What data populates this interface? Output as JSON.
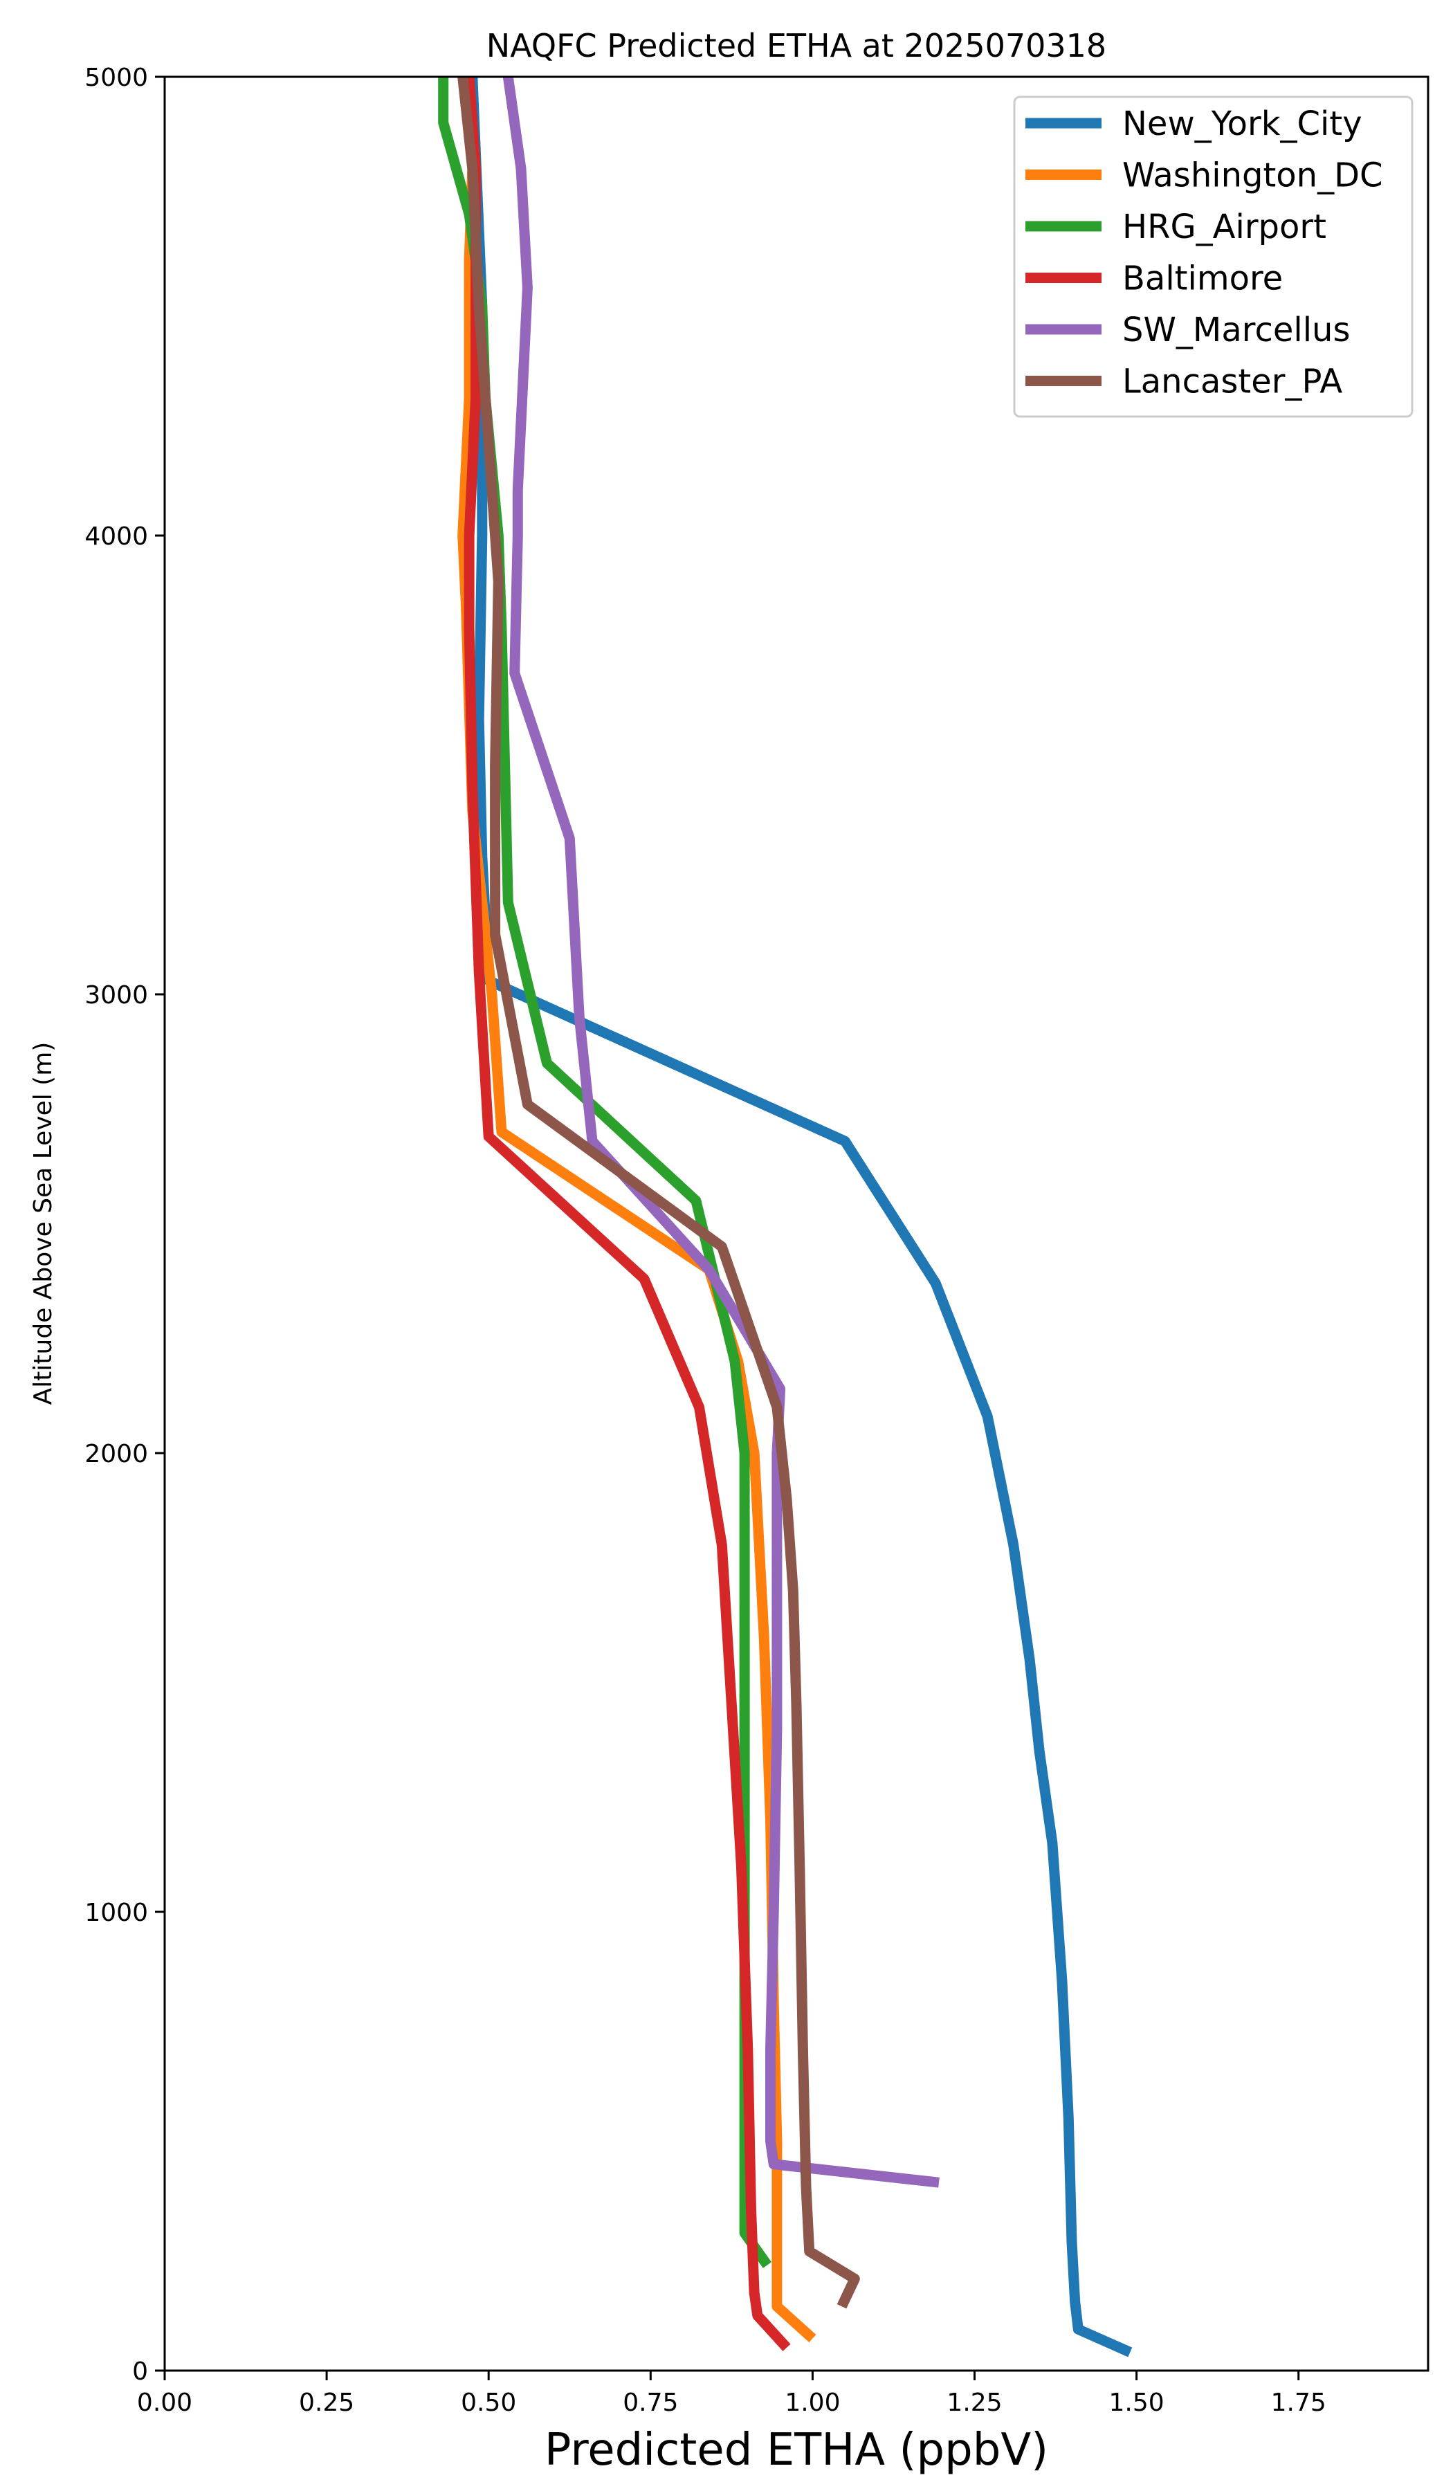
{
  "chart_data": {
    "type": "line",
    "title": "NAQFC Predicted ETHA at 2025070318",
    "xlabel": "Predicted ETHA (ppbV)",
    "ylabel": "Altitude Above Sea Level (m)",
    "xlim": [
      0,
      1.95
    ],
    "ylim": [
      0,
      5000
    ],
    "xticks": [
      "0.00",
      "0.25",
      "0.50",
      "0.75",
      "1.00",
      "1.25",
      "1.50",
      "1.75"
    ],
    "yticks": [
      "0",
      "1000",
      "2000",
      "3000",
      "4000",
      "5000"
    ],
    "grid": false,
    "legend_position": "top-right",
    "series": [
      {
        "name": "New_York_City",
        "color": "#1f77b4",
        "x": [
          1.49,
          1.41,
          1.405,
          1.4,
          1.395,
          1.385,
          1.37,
          1.35,
          1.335,
          1.31,
          1.27,
          1.19,
          1.05,
          0.5,
          0.49,
          0.485,
          0.49,
          0.49,
          0.475
        ],
        "y": [
          40,
          90,
          150,
          280,
          550,
          850,
          1150,
          1350,
          1550,
          1800,
          2080,
          2370,
          2680,
          3030,
          3300,
          3600,
          4000,
          4500,
          5000
        ]
      },
      {
        "name": "Washington_DC",
        "color": "#ff7f0e",
        "x": [
          1.0,
          0.945,
          0.945,
          0.945,
          0.94,
          0.935,
          0.925,
          0.91,
          0.885,
          0.84,
          0.52,
          0.505,
          0.475,
          0.465,
          0.46,
          0.47,
          0.47,
          0.475,
          0.46
        ],
        "y": [
          70,
          140,
          300,
          500,
          800,
          1200,
          1600,
          2000,
          2200,
          2400,
          2700,
          3000,
          3400,
          3850,
          4000,
          4300,
          4600,
          4800,
          5000
        ]
      },
      {
        "name": "HRG_Airport",
        "color": "#2ca02c",
        "x": [
          0.93,
          0.895,
          0.895,
          0.895,
          0.895,
          0.895,
          0.895,
          0.895,
          0.88,
          0.82,
          0.59,
          0.53,
          0.525,
          0.52,
          0.515,
          0.495,
          0.49,
          0.47,
          0.43,
          0.43
        ],
        "y": [
          230,
          300,
          500,
          800,
          1100,
          1400,
          1700,
          2000,
          2200,
          2550,
          2850,
          3200,
          3500,
          3800,
          4000,
          4300,
          4500,
          4700,
          4900,
          5000
        ]
      },
      {
        "name": "Baltimore",
        "color": "#d62728",
        "x": [
          0.96,
          0.915,
          0.91,
          0.905,
          0.9,
          0.89,
          0.875,
          0.86,
          0.825,
          0.74,
          0.5,
          0.485,
          0.475,
          0.47,
          0.47,
          0.48,
          0.48,
          0.48,
          0.47
        ],
        "y": [
          50,
          120,
          170,
          350,
          700,
          1100,
          1450,
          1800,
          2100,
          2380,
          2690,
          3050,
          3450,
          3800,
          4000,
          4300,
          4600,
          4800,
          5000
        ]
      },
      {
        "name": "SW_Marcellus",
        "color": "#9467bd",
        "x": [
          1.195,
          0.94,
          0.935,
          0.935,
          0.94,
          0.945,
          0.945,
          0.945,
          0.95,
          0.84,
          0.66,
          0.64,
          0.625,
          0.54,
          0.545,
          0.545,
          0.56,
          0.55,
          0.53
        ],
        "y": [
          410,
          450,
          500,
          700,
          1000,
          1400,
          1800,
          2000,
          2140,
          2400,
          2680,
          2950,
          3340,
          3700,
          4000,
          4100,
          4540,
          4800,
          5000
        ]
      },
      {
        "name": "Lancaster_PA",
        "color": "#8c564b",
        "x": [
          1.045,
          1.065,
          0.995,
          0.99,
          0.985,
          0.98,
          0.975,
          0.97,
          0.96,
          0.945,
          0.86,
          0.56,
          0.51,
          0.51,
          0.515,
          0.5,
          0.485,
          0.475,
          0.46
        ],
        "y": [
          140,
          200,
          260,
          400,
          700,
          1100,
          1450,
          1700,
          1900,
          2100,
          2450,
          2760,
          3130,
          3500,
          3900,
          4200,
          4500,
          4800,
          5000
        ]
      }
    ]
  }
}
